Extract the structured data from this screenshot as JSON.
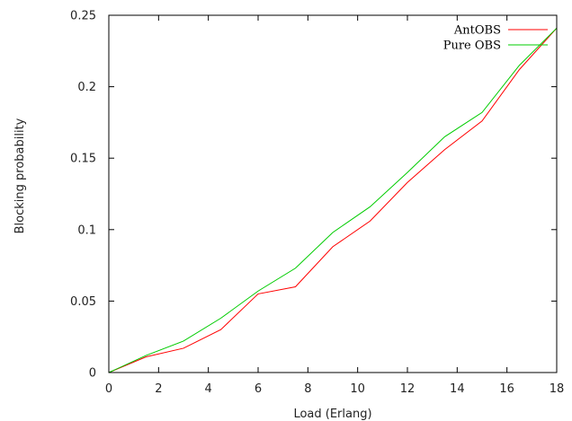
{
  "chart_data": {
    "type": "line",
    "title": "",
    "xlabel": "Load (Erlang)",
    "ylabel": "Blocking probability",
    "xlim": [
      0,
      18
    ],
    "ylim": [
      0,
      0.25
    ],
    "x_ticks": [
      "0",
      "2",
      "4",
      "6",
      "8",
      "10",
      "12",
      "14",
      "16",
      "18"
    ],
    "y_ticks": [
      "0",
      "0.05",
      "0.1",
      "0.15",
      "0.2",
      "0.25"
    ],
    "grid": false,
    "legend_position": "top-right",
    "series": [
      {
        "name": "AntOBS",
        "color": "#ff0000",
        "x": [
          0,
          1.5,
          3,
          4.5,
          6,
          7.5,
          9,
          10.5,
          12,
          13.5,
          15,
          16.5,
          18
        ],
        "y": [
          0,
          0.011,
          0.017,
          0.03,
          0.055,
          0.06,
          0.088,
          0.106,
          0.133,
          0.156,
          0.176,
          0.212,
          0.241
        ]
      },
      {
        "name": "Pure OBS",
        "color": "#00cc00",
        "x": [
          0,
          1.5,
          3,
          4.5,
          6,
          7.5,
          9,
          10.5,
          12,
          13.5,
          15,
          16.5,
          18
        ],
        "y": [
          0,
          0.012,
          0.022,
          0.038,
          0.057,
          0.073,
          0.098,
          0.116,
          0.14,
          0.165,
          0.182,
          0.215,
          0.241
        ]
      }
    ]
  }
}
